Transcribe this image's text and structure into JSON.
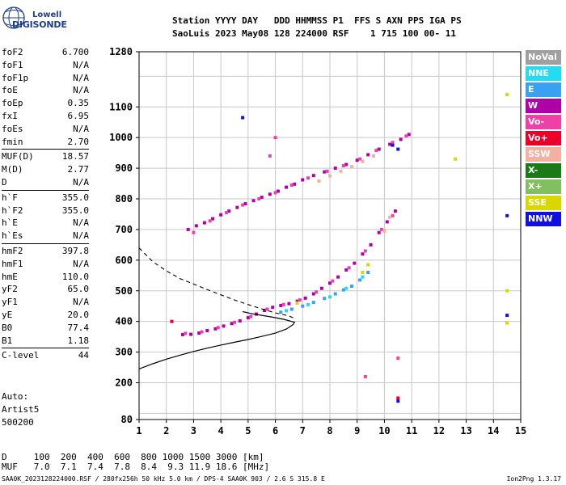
{
  "logo": {
    "line1": "Lowell",
    "line2": "DIGISONDE"
  },
  "header": {
    "line1": "Station YYYY DAY   DDD HHMMSS P1  FFS S AXN PPS IGA PS",
    "line2": "SaoLuis 2023 May08 128 224000 RSF    1 715 100 00- 11"
  },
  "params": [
    {
      "label": "foF2",
      "value": "6.700"
    },
    {
      "label": "foF1",
      "value": "N/A"
    },
    {
      "label": "foF1p",
      "value": "N/A"
    },
    {
      "label": "foE",
      "value": "N/A"
    },
    {
      "label": "foEp",
      "value": "0.35"
    },
    {
      "label": "fxI",
      "value": "6.95"
    },
    {
      "label": "foEs",
      "value": "N/A"
    },
    {
      "label": "fmin",
      "value": "2.70"
    },
    {
      "label": "MUF(D)",
      "value": "18.57"
    },
    {
      "label": "M(D)",
      "value": "2.77"
    },
    {
      "label": "D",
      "value": "N/A"
    },
    {
      "label": "h`F",
      "value": "355.0"
    },
    {
      "label": "h`F2",
      "value": "355.0"
    },
    {
      "label": "h`E",
      "value": "N/A"
    },
    {
      "label": "h`Es",
      "value": "N/A"
    },
    {
      "label": "hmF2",
      "value": "397.8"
    },
    {
      "label": "hmF1",
      "value": "N/A"
    },
    {
      "label": "hmE",
      "value": "110.0"
    },
    {
      "label": "yF2",
      "value": "65.0"
    },
    {
      "label": "yF1",
      "value": "N/A"
    },
    {
      "label": "yE",
      "value": "20.0"
    },
    {
      "label": "B0",
      "value": "77.4"
    },
    {
      "label": "B1",
      "value": "1.18"
    },
    {
      "label": "C-level",
      "value": "44"
    }
  ],
  "auto": {
    "label": "Auto:",
    "artist": "Artist5",
    "version": "500200"
  },
  "legend": [
    {
      "label": "NoVal",
      "color": "#a0a0a0"
    },
    {
      "label": "NNE",
      "color": "#22ddf0"
    },
    {
      "label": "E",
      "color": "#3aa0f0"
    },
    {
      "label": "W",
      "color": "#b000a8"
    },
    {
      "label": "Vo-",
      "color": "#f040a8"
    },
    {
      "label": "Vo+",
      "color": "#e8002a"
    },
    {
      "label": "SSW",
      "color": "#f4b0a0"
    },
    {
      "label": "X-",
      "color": "#1a7a18"
    },
    {
      "label": "X+",
      "color": "#80c060"
    },
    {
      "label": "SSE",
      "color": "#d8d800"
    },
    {
      "label": "NNW",
      "color": "#1010e0"
    }
  ],
  "muf_table": {
    "d_label": "D",
    "d_values": [
      "100",
      "200",
      "400",
      "600",
      "800",
      "1000",
      "1500",
      "3000"
    ],
    "d_unit": "[km]",
    "muf_label": "MUF",
    "muf_values": [
      "7.0",
      "7.1",
      "7.4",
      "7.8",
      "8.4",
      "9.3",
      "11.9",
      "18.6"
    ],
    "muf_unit": "[MHz]"
  },
  "footer": {
    "left": "SAA0K_2023128224000.RSF / 280fx256h 50 kHz 5.0 km / DPS-4 SAA0K 903 / 2.6 S 315.8 E",
    "right": "Ion2Png 1.3.17"
  },
  "chart_data": {
    "type": "scatter",
    "xlim": [
      1,
      15
    ],
    "ylim": [
      80,
      1280
    ],
    "x_ticks": [
      1,
      2,
      3,
      4,
      5,
      6,
      7,
      8,
      9,
      10,
      11,
      12,
      13,
      14,
      15
    ],
    "y_ticks": [
      80,
      200,
      300,
      400,
      500,
      600,
      700,
      800,
      900,
      1000,
      1100,
      1280
    ],
    "grid": true,
    "series": [
      {
        "name": "W",
        "color": "#b000a8",
        "points": [
          [
            2.6,
            357
          ],
          [
            2.9,
            358
          ],
          [
            3.2,
            362
          ],
          [
            3.5,
            370
          ],
          [
            3.8,
            376
          ],
          [
            4.1,
            385
          ],
          [
            4.4,
            393
          ],
          [
            4.7,
            402
          ],
          [
            5.0,
            412
          ],
          [
            5.3,
            424
          ],
          [
            5.6,
            436
          ],
          [
            5.9,
            446
          ],
          [
            6.2,
            452
          ],
          [
            6.5,
            458
          ],
          [
            6.8,
            466
          ],
          [
            7.1,
            476
          ],
          [
            7.4,
            490
          ],
          [
            7.7,
            508
          ],
          [
            8.0,
            525
          ],
          [
            8.3,
            545
          ],
          [
            8.6,
            568
          ],
          [
            8.9,
            590
          ],
          [
            9.2,
            620
          ],
          [
            9.5,
            650
          ],
          [
            9.8,
            690
          ],
          [
            10.1,
            725
          ],
          [
            10.4,
            760
          ],
          [
            2.8,
            700
          ],
          [
            3.1,
            712
          ],
          [
            3.4,
            722
          ],
          [
            3.7,
            735
          ],
          [
            4.0,
            748
          ],
          [
            4.3,
            760
          ],
          [
            4.6,
            772
          ],
          [
            4.9,
            784
          ],
          [
            5.2,
            794
          ],
          [
            5.5,
            805
          ],
          [
            5.8,
            815
          ],
          [
            6.1,
            825
          ],
          [
            6.4,
            838
          ],
          [
            6.7,
            848
          ],
          [
            7.0,
            862
          ],
          [
            7.4,
            876
          ],
          [
            7.8,
            888
          ],
          [
            8.2,
            900
          ],
          [
            8.6,
            912
          ],
          [
            9.0,
            926
          ],
          [
            9.4,
            944
          ],
          [
            9.8,
            962
          ],
          [
            10.2,
            978
          ],
          [
            10.6,
            994
          ],
          [
            10.9,
            1010
          ]
        ]
      },
      {
        "name": "Vo-",
        "color": "#f040a8",
        "points": [
          [
            2.7,
            361
          ],
          [
            3.3,
            366
          ],
          [
            3.9,
            380
          ],
          [
            4.5,
            397
          ],
          [
            5.1,
            416
          ],
          [
            5.7,
            440
          ],
          [
            6.3,
            455
          ],
          [
            6.9,
            470
          ],
          [
            7.5,
            496
          ],
          [
            8.1,
            532
          ],
          [
            8.7,
            575
          ],
          [
            9.3,
            630
          ],
          [
            9.9,
            700
          ],
          [
            10.3,
            745
          ],
          [
            3.0,
            690
          ],
          [
            3.6,
            728
          ],
          [
            4.2,
            755
          ],
          [
            4.8,
            780
          ],
          [
            5.4,
            800
          ],
          [
            6.0,
            820
          ],
          [
            6.6,
            845
          ],
          [
            7.2,
            868
          ],
          [
            7.9,
            890
          ],
          [
            8.5,
            908
          ],
          [
            9.1,
            930
          ],
          [
            9.7,
            958
          ],
          [
            10.3,
            984
          ],
          [
            10.8,
            1005
          ],
          [
            6.0,
            1000
          ],
          [
            5.8,
            940
          ],
          [
            10.5,
            280
          ],
          [
            9.3,
            220
          ]
        ]
      },
      {
        "name": "E",
        "color": "#3aa0f0",
        "points": [
          [
            6.2,
            430
          ],
          [
            6.6,
            440
          ],
          [
            7.0,
            450
          ],
          [
            7.4,
            462
          ],
          [
            7.8,
            475
          ],
          [
            8.2,
            490
          ],
          [
            8.5,
            503
          ],
          [
            8.8,
            515
          ],
          [
            9.1,
            535
          ],
          [
            9.4,
            560
          ]
        ]
      },
      {
        "name": "NNE",
        "color": "#22ddf0",
        "points": [
          [
            6.4,
            435
          ],
          [
            7.2,
            455
          ],
          [
            8.0,
            480
          ],
          [
            8.6,
            508
          ],
          [
            9.2,
            545
          ]
        ]
      },
      {
        "name": "SSW",
        "color": "#f4b0a0",
        "points": [
          [
            7.6,
            858
          ],
          [
            8.0,
            875
          ],
          [
            8.4,
            890
          ],
          [
            8.8,
            905
          ],
          [
            9.2,
            922
          ],
          [
            9.6,
            940
          ],
          [
            10.0,
            695
          ],
          [
            10.2,
            740
          ]
        ]
      },
      {
        "name": "SSE",
        "color": "#d8d800",
        "points": [
          [
            9.4,
            585
          ],
          [
            9.2,
            560
          ],
          [
            6.8,
            460
          ],
          [
            14.5,
            500
          ],
          [
            14.5,
            395
          ],
          [
            14.5,
            1140
          ],
          [
            12.6,
            930
          ]
        ]
      },
      {
        "name": "NNW",
        "color": "#1010e0",
        "points": [
          [
            10.5,
            140
          ],
          [
            14.5,
            745
          ],
          [
            4.8,
            1065
          ],
          [
            14.5,
            420
          ],
          [
            10.5,
            962
          ],
          [
            10.3,
            975
          ]
        ]
      },
      {
        "name": "Vo+",
        "color": "#e8002a",
        "points": [
          [
            10.5,
            150
          ],
          [
            2.2,
            400
          ]
        ]
      }
    ],
    "profile_solid": [
      [
        1.0,
        245
      ],
      [
        1.5,
        262
      ],
      [
        2.0,
        277
      ],
      [
        2.5,
        290
      ],
      [
        3.0,
        302
      ],
      [
        3.5,
        313
      ],
      [
        4.0,
        323
      ],
      [
        4.5,
        332
      ],
      [
        5.0,
        341
      ],
      [
        5.5,
        351
      ],
      [
        6.0,
        362
      ],
      [
        6.4,
        375
      ],
      [
        6.65,
        390
      ],
      [
        6.7,
        397.8
      ],
      [
        6.6,
        400
      ],
      [
        6.3,
        407
      ],
      [
        5.9,
        414
      ],
      [
        5.5,
        420
      ],
      [
        5.1,
        426
      ],
      [
        4.8,
        432
      ]
    ],
    "profile_dashed": [
      [
        1.0,
        640
      ],
      [
        1.5,
        595
      ],
      [
        2.0,
        565
      ],
      [
        2.5,
        540
      ],
      [
        3.0,
        522
      ],
      [
        3.5,
        504
      ],
      [
        4.0,
        487
      ],
      [
        4.5,
        470
      ],
      [
        5.0,
        455
      ],
      [
        5.5,
        441
      ],
      [
        6.0,
        428
      ],
      [
        6.5,
        418
      ],
      [
        6.7,
        410
      ]
    ]
  }
}
